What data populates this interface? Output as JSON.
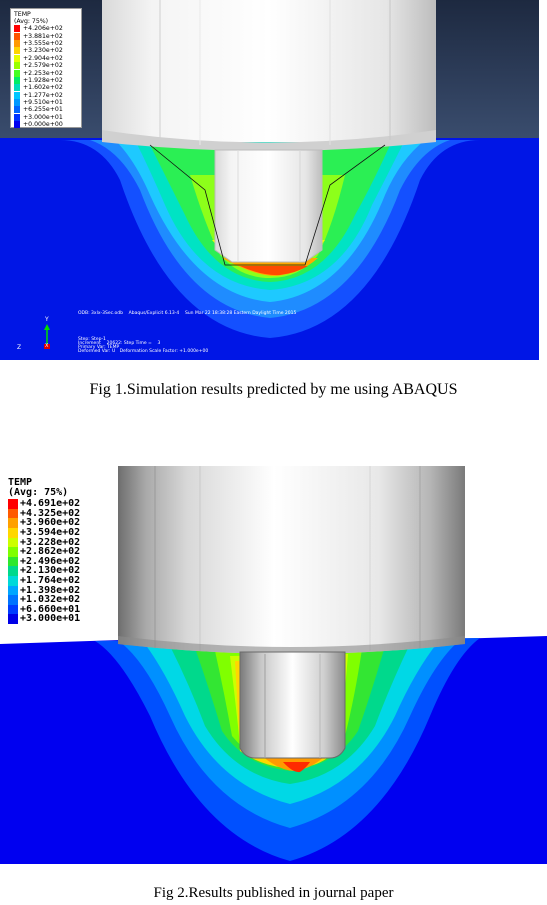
{
  "figure1": {
    "legend_title": "TEMP",
    "legend_subtitle": "(Avg: 75%)",
    "legend_values": [
      "+4.206e+02",
      "+3.881e+02",
      "+3.555e+02",
      "+3.230e+02",
      "+2.904e+02",
      "+2.579e+02",
      "+2.253e+02",
      "+1.928e+02",
      "+1.602e+02",
      "+1.277e+02",
      "+9.510e+01",
      "+6.255e+01",
      "+3.000e+01",
      "+0.000e+00"
    ],
    "legend_colors": [
      "#ff0000",
      "#ff5500",
      "#ff9900",
      "#ffd400",
      "#e6ff00",
      "#99ff00",
      "#44ff22",
      "#00ee66",
      "#00ddbb",
      "#00c6ff",
      "#0099ff",
      "#0066ff",
      "#0033ff",
      "#0000ee"
    ],
    "odb_line": "ODB: 3xlx-3Sec.odb    Abaqus/Explicit 6.13-4    Sun Mar 22 18:38:28 Eastern Daylight Time 2015",
    "step_line": "Step: Step-1",
    "increment_line": "Increment    20622: Step Time =    3",
    "primary_var_line": "Primary Var: TEMP",
    "deformed_line": "Deformed Var: U   Deformation Scale Factor: +1.000e+00",
    "axis_y": "Y",
    "axis_z": "Z",
    "axis_x": "X",
    "caption": "Fig 1.Simulation results predicted by me using ABAQUS"
  },
  "figure2": {
    "legend_title": "TEMP",
    "legend_subtitle": "(Avg: 75%)",
    "legend_values": [
      "+4.691e+02",
      "+4.325e+02",
      "+3.960e+02",
      "+3.594e+02",
      "+3.228e+02",
      "+2.862e+02",
      "+2.496e+02",
      "+2.130e+02",
      "+1.764e+02",
      "+1.398e+02",
      "+1.032e+02",
      "+6.660e+01",
      "+3.000e+01"
    ],
    "legend_colors": [
      "#ff0000",
      "#ff5a00",
      "#ffa000",
      "#ffd700",
      "#ccff00",
      "#7fff00",
      "#2ee82e",
      "#00d98c",
      "#00d9d9",
      "#00a6ff",
      "#0073ff",
      "#003cff",
      "#0000e6"
    ],
    "caption": "Fig 2.Results published in journal paper"
  }
}
